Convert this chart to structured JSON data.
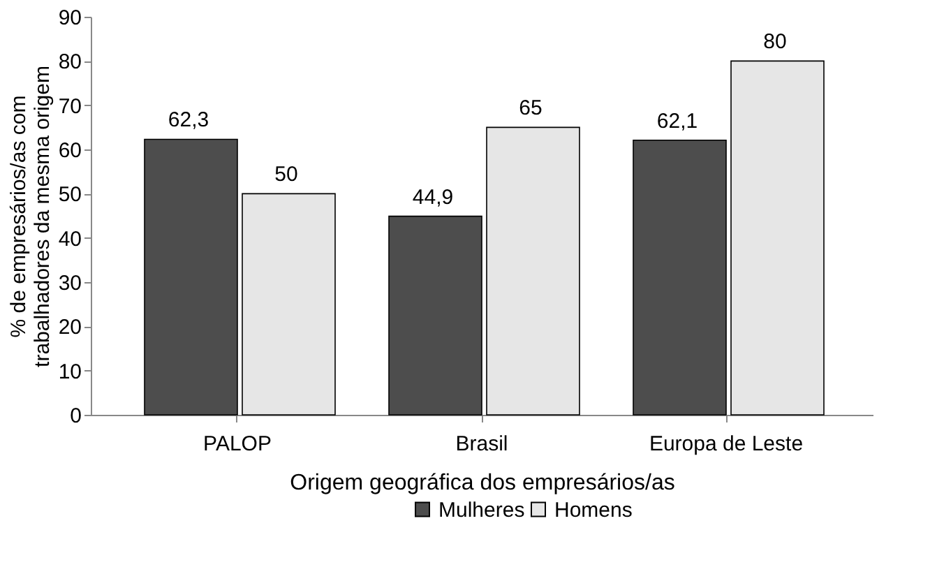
{
  "chart_data": {
    "type": "bar",
    "xlabel": "Origem geográfica dos empresários/as",
    "ylabel": "% de empresários/as com\ntrabalhadores da mesma origem",
    "categories": [
      "PALOP",
      "Brasil",
      "Europa de Leste"
    ],
    "series": [
      {
        "name": "Mulheres",
        "color": "#4d4d4d",
        "values": [
          62.3,
          44.9,
          62.1
        ],
        "value_labels": [
          "62,3",
          "44,9",
          "62,1"
        ]
      },
      {
        "name": "Homens",
        "color": "#e6e6e6",
        "values": [
          50,
          65,
          80
        ],
        "value_labels": [
          "50",
          "65",
          "80"
        ]
      }
    ],
    "ylim": [
      0,
      90
    ],
    "yticks": [
      0,
      10,
      20,
      30,
      40,
      50,
      60,
      70,
      80,
      90
    ],
    "grid": false,
    "legend": "bottom"
  }
}
